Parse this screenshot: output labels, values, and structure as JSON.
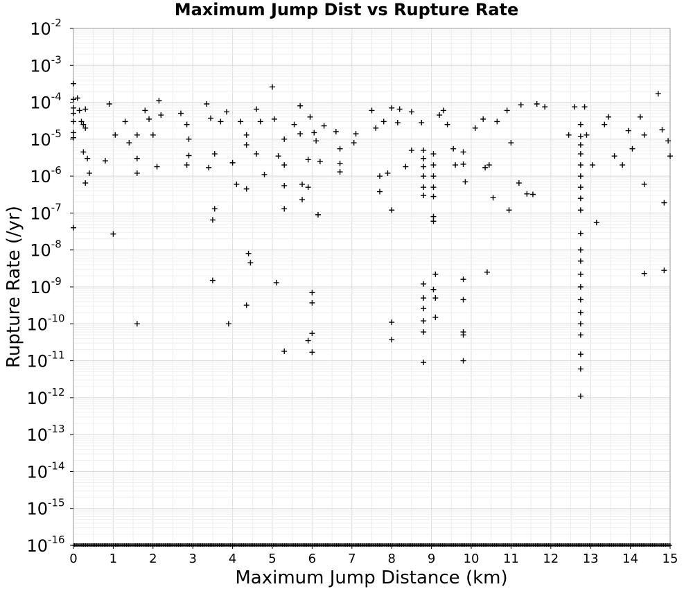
{
  "chart_data": {
    "type": "scatter",
    "title": "Maximum Jump Dist vs Rupture Rate",
    "xlabel": "Maximum Jump Distance (km)",
    "ylabel": "Rupture Rate (/yr)",
    "xlim": [
      0,
      15
    ],
    "ylim_exponent": [
      -16,
      -2
    ],
    "y_scale": "log",
    "grid": true,
    "marker": "plus",
    "marker_color": "#000000",
    "x_ticks": [
      "0",
      "1",
      "2",
      "3",
      "4",
      "5",
      "6",
      "7",
      "8",
      "9",
      "10",
      "11",
      "12",
      "13",
      "14",
      "15"
    ],
    "y_ticks": [
      {
        "base": "10",
        "exp": "-2"
      },
      {
        "base": "10",
        "exp": "-3"
      },
      {
        "base": "10",
        "exp": "-4"
      },
      {
        "base": "10",
        "exp": "-5"
      },
      {
        "base": "10",
        "exp": "-6"
      },
      {
        "base": "10",
        "exp": "-7"
      },
      {
        "base": "10",
        "exp": "-8"
      },
      {
        "base": "10",
        "exp": "-9"
      },
      {
        "base": "10",
        "exp": "-10"
      },
      {
        "base": "10",
        "exp": "-11"
      },
      {
        "base": "10",
        "exp": "-12"
      },
      {
        "base": "10",
        "exp": "-13"
      },
      {
        "base": "10",
        "exp": "-14"
      },
      {
        "base": "10",
        "exp": "-15"
      },
      {
        "base": "10",
        "exp": "-16"
      }
    ],
    "points": [
      [
        0,
        0.00032
      ],
      [
        0,
        0.00012
      ],
      [
        0,
        7e-05
      ],
      [
        0,
        5e-05
      ],
      [
        0,
        3e-05
      ],
      [
        0,
        1.5e-05
      ],
      [
        0,
        1.1e-05
      ],
      [
        0,
        4e-08
      ],
      [
        0.1,
        0.00013
      ],
      [
        0.15,
        6e-05
      ],
      [
        0.2,
        3e-05
      ],
      [
        0.25,
        2.5e-05
      ],
      [
        0.3,
        6.5e-05
      ],
      [
        0.3,
        2e-05
      ],
      [
        0.35,
        3e-06
      ],
      [
        0.4,
        1.2e-06
      ],
      [
        0.3,
        6.5e-07
      ],
      [
        0.25,
        4.5e-06
      ],
      [
        0.8,
        2.6e-06
      ],
      [
        0.9,
        9e-05
      ],
      [
        1.0,
        2.7e-08
      ],
      [
        1.05,
        1.3e-05
      ],
      [
        1.3,
        3e-05
      ],
      [
        1.4,
        8e-06
      ],
      [
        1.6,
        1.3e-05
      ],
      [
        1.6,
        3e-06
      ],
      [
        1.6,
        1.2e-06
      ],
      [
        1.6,
        1e-10
      ],
      [
        1.8,
        6e-05
      ],
      [
        1.9,
        3.5e-05
      ],
      [
        2.0,
        1.3e-05
      ],
      [
        2.1,
        1.8e-06
      ],
      [
        2.15,
        0.00011
      ],
      [
        2.2,
        4.5e-05
      ],
      [
        2.7,
        5e-05
      ],
      [
        2.85,
        2.5e-05
      ],
      [
        2.9,
        1e-05
      ],
      [
        2.9,
        3.6e-06
      ],
      [
        2.85,
        2e-06
      ],
      [
        3.35,
        9e-05
      ],
      [
        3.45,
        3.7e-05
      ],
      [
        3.55,
        1.3e-07
      ],
      [
        3.5,
        6.5e-08
      ],
      [
        3.5,
        1.5e-09
      ],
      [
        3.4,
        1.7e-06
      ],
      [
        3.55,
        4e-06
      ],
      [
        3.7,
        3e-05
      ],
      [
        3.85,
        5.5e-05
      ],
      [
        3.9,
        1e-10
      ],
      [
        4.0,
        2.3e-06
      ],
      [
        4.1,
        6e-07
      ],
      [
        4.2,
        3e-05
      ],
      [
        4.35,
        1.3e-05
      ],
      [
        4.35,
        7e-06
      ],
      [
        4.35,
        4.5e-07
      ],
      [
        4.4,
        8e-09
      ],
      [
        4.45,
        4.5e-09
      ],
      [
        4.35,
        3.2e-10
      ],
      [
        4.6,
        6.5e-05
      ],
      [
        4.7,
        3e-05
      ],
      [
        4.8,
        1.1e-06
      ],
      [
        4.6,
        4e-06
      ],
      [
        5.0,
        0.00026
      ],
      [
        5.05,
        3.5e-05
      ],
      [
        5.1,
        1.3e-09
      ],
      [
        5.15,
        3.5e-06
      ],
      [
        5.3,
        1e-05
      ],
      [
        5.3,
        2e-06
      ],
      [
        5.3,
        5.5e-07
      ],
      [
        5.3,
        1.3e-07
      ],
      [
        5.3,
        1.8e-11
      ],
      [
        5.55,
        2.5e-05
      ],
      [
        5.7,
        8e-05
      ],
      [
        5.7,
        1.4e-05
      ],
      [
        5.75,
        2.3e-07
      ],
      [
        5.75,
        6e-07
      ],
      [
        5.9,
        5e-07
      ],
      [
        5.9,
        2.8e-06
      ],
      [
        5.95,
        4e-05
      ],
      [
        6.0,
        7e-10
      ],
      [
        6.0,
        3.7e-10
      ],
      [
        6.0,
        5.5e-11
      ],
      [
        5.9,
        3.5e-11
      ],
      [
        6.0,
        1.7e-11
      ],
      [
        6.05,
        1.5e-05
      ],
      [
        6.1,
        9e-06
      ],
      [
        6.15,
        9e-08
      ],
      [
        6.3,
        2.3e-05
      ],
      [
        6.2,
        2.5e-06
      ],
      [
        6.6,
        1.6e-05
      ],
      [
        6.7,
        5.5e-06
      ],
      [
        6.7,
        2.2e-06
      ],
      [
        6.7,
        1.3e-06
      ],
      [
        7.05,
        8e-06
      ],
      [
        7.1,
        1.4e-05
      ],
      [
        7.5,
        6e-05
      ],
      [
        7.6,
        2e-05
      ],
      [
        7.7,
        3.8e-07
      ],
      [
        7.7,
        1e-06
      ],
      [
        7.8,
        3e-05
      ],
      [
        7.9,
        1.2e-06
      ],
      [
        8.0,
        7e-05
      ],
      [
        8.0,
        1.2e-07
      ],
      [
        8.0,
        1.1e-10
      ],
      [
        8.0,
        3.7e-11
      ],
      [
        8.15,
        2.8e-05
      ],
      [
        8.2,
        6.5e-05
      ],
      [
        8.35,
        1.8e-06
      ],
      [
        8.5,
        5.5e-05
      ],
      [
        8.5,
        5e-06
      ],
      [
        8.75,
        2.8e-05
      ],
      [
        8.8,
        5e-06
      ],
      [
        8.8,
        3e-06
      ],
      [
        8.8,
        1.8e-06
      ],
      [
        8.8,
        1e-06
      ],
      [
        8.8,
        5e-07
      ],
      [
        8.8,
        3e-07
      ],
      [
        8.8,
        1.2e-09
      ],
      [
        8.8,
        5e-10
      ],
      [
        8.8,
        2.6e-10
      ],
      [
        8.8,
        1.2e-10
      ],
      [
        8.8,
        6e-11
      ],
      [
        8.8,
        9e-12
      ],
      [
        9.05,
        4e-06
      ],
      [
        9.05,
        2e-06
      ],
      [
        9.05,
        1e-06
      ],
      [
        9.05,
        5e-07
      ],
      [
        9.05,
        2.8e-07
      ],
      [
        9.05,
        8e-08
      ],
      [
        9.05,
        6e-08
      ],
      [
        9.1,
        2.2e-09
      ],
      [
        9.05,
        8.5e-10
      ],
      [
        9.1,
        5e-10
      ],
      [
        9.1,
        1.5e-10
      ],
      [
        9.2,
        4.5e-05
      ],
      [
        9.3,
        6e-05
      ],
      [
        9.4,
        2.5e-05
      ],
      [
        9.55,
        5.5e-06
      ],
      [
        9.6,
        2e-06
      ],
      [
        9.8,
        4.5e-06
      ],
      [
        9.8,
        2.1e-06
      ],
      [
        9.85,
        7e-07
      ],
      [
        9.8,
        1.6e-09
      ],
      [
        9.8,
        4.5e-10
      ],
      [
        9.8,
        6e-11
      ],
      [
        9.8,
        5e-11
      ],
      [
        9.8,
        1e-11
      ],
      [
        10.1,
        2e-05
      ],
      [
        10.3,
        3.5e-05
      ],
      [
        10.35,
        1.7e-06
      ],
      [
        10.45,
        2e-06
      ],
      [
        10.4,
        2.5e-09
      ],
      [
        10.55,
        2.6e-07
      ],
      [
        10.65,
        3e-05
      ],
      [
        10.9,
        6e-05
      ],
      [
        10.95,
        1.2e-07
      ],
      [
        11.0,
        8e-06
      ],
      [
        11.2,
        6.5e-07
      ],
      [
        11.25,
        8.5e-05
      ],
      [
        11.4,
        3.3e-07
      ],
      [
        11.55,
        3.2e-07
      ],
      [
        11.65,
        9e-05
      ],
      [
        11.85,
        7.5e-05
      ],
      [
        12.45,
        1.3e-05
      ],
      [
        12.6,
        7.5e-05
      ],
      [
        12.75,
        2.5e-05
      ],
      [
        12.75,
        1.2e-05
      ],
      [
        12.75,
        7e-06
      ],
      [
        12.75,
        4e-06
      ],
      [
        12.75,
        2e-06
      ],
      [
        12.75,
        1e-06
      ],
      [
        12.75,
        5e-07
      ],
      [
        12.75,
        2.5e-07
      ],
      [
        12.75,
        1.2e-07
      ],
      [
        12.75,
        2.8e-08
      ],
      [
        12.75,
        1e-08
      ],
      [
        12.75,
        5e-09
      ],
      [
        12.75,
        2.2e-09
      ],
      [
        12.75,
        1e-09
      ],
      [
        12.75,
        4.5e-10
      ],
      [
        12.75,
        2e-10
      ],
      [
        12.75,
        1e-10
      ],
      [
        12.75,
        5e-11
      ],
      [
        12.75,
        1.5e-11
      ],
      [
        12.75,
        6e-12
      ],
      [
        12.75,
        1.1e-12
      ],
      [
        12.85,
        7.5e-05
      ],
      [
        12.9,
        1.3e-05
      ],
      [
        13.05,
        2e-06
      ],
      [
        13.15,
        5.5e-08
      ],
      [
        13.35,
        2.5e-05
      ],
      [
        13.45,
        4e-05
      ],
      [
        13.6,
        3.5e-06
      ],
      [
        13.8,
        2e-06
      ],
      [
        13.95,
        1.7e-05
      ],
      [
        14.05,
        5.5e-06
      ],
      [
        14.25,
        4e-05
      ],
      [
        14.35,
        1.3e-05
      ],
      [
        14.35,
        6e-07
      ],
      [
        14.35,
        2.3e-09
      ],
      [
        14.7,
        0.00017
      ],
      [
        14.8,
        1.8e-05
      ],
      [
        14.85,
        1.9e-07
      ],
      [
        14.85,
        2.8e-09
      ],
      [
        14.95,
        9e-06
      ],
      [
        15.0,
        3.5e-06
      ]
    ],
    "floor_markers_note_value": 1e-16
  }
}
